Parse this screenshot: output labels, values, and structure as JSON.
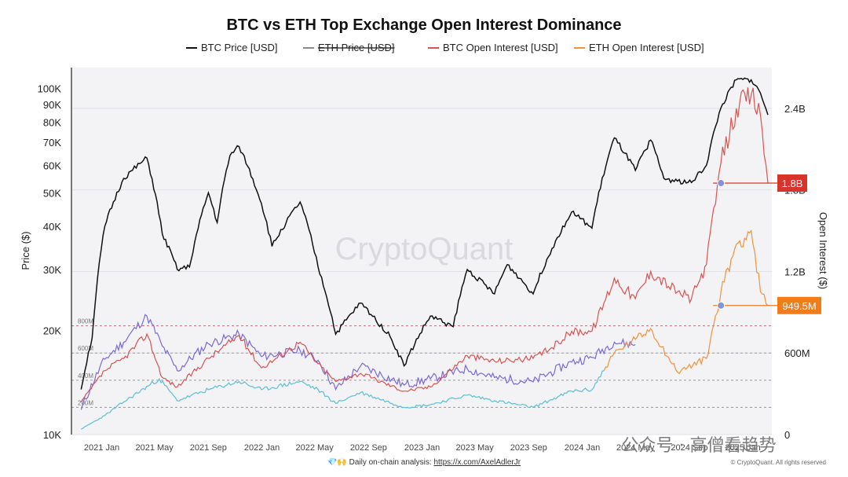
{
  "chart_data": {
    "type": "line",
    "title": "BTC vs ETH Top Exchange Open Interest Dominance",
    "ylabel": "Price ($)",
    "y2label": "Open Interest ($)",
    "legend": [
      {
        "key": "btc_price",
        "label": "BTC Price [USD]",
        "color": "#111111",
        "hidden": false
      },
      {
        "key": "eth_price",
        "label": "ETH Price [USD]",
        "color": "#8a8a8a",
        "hidden": true
      },
      {
        "key": "btc_oi",
        "label": "BTC Open Interest [USD]",
        "color": "#d9534f",
        "hidden": false
      },
      {
        "key": "eth_oi",
        "label": "ETH Open Interest [USD]",
        "color": "#f0923a",
        "hidden": false
      }
    ],
    "x_ticks": [
      "2021 Jan",
      "2021 May",
      "2021 Sep",
      "2022 Jan",
      "2022 May",
      "2022 Sep",
      "2023 Jan",
      "2023 May",
      "2023 Sep",
      "2024 Jan",
      "2024 May",
      "2024 Sep",
      "2025 Jan"
    ],
    "y_ticks": [
      "10K",
      "20K",
      "30K",
      "40K",
      "50K",
      "60K",
      "70K",
      "80K",
      "90K",
      "100K"
    ],
    "y2_ticks": [
      "0",
      "600M",
      "1.2B",
      "1.8B",
      "2.4B"
    ],
    "y_scale": "log",
    "ylim": [
      10000,
      115000
    ],
    "y2lim": [
      0,
      2700000000
    ],
    "grid": true,
    "legend_position": "top",
    "threshold_lines": [
      {
        "label": "800M",
        "value": 800000000,
        "color": "#e06666"
      },
      {
        "label": "600M",
        "value": 600000000,
        "color": "#999999"
      },
      {
        "label": "400M",
        "value": 400000000,
        "color": "#999999"
      },
      {
        "label": "200M",
        "value": 200000000,
        "color": "#999999"
      }
    ],
    "badges": [
      {
        "label": "1.8B",
        "value": 1850000000,
        "color": "#d9342b"
      },
      {
        "label": "949.5M",
        "value": 949500000,
        "color": "#f07d1a"
      }
    ],
    "series": [
      {
        "key": "btc_price",
        "name": "BTC Price [USD]",
        "axis": "left",
        "color": "#111111",
        "x": [
          "2020-11-15",
          "2020-12-10",
          "2021-01-08",
          "2021-02-20",
          "2021-04-14",
          "2021-05-19",
          "2021-06-22",
          "2021-07-20",
          "2021-09-01",
          "2021-09-21",
          "2021-10-20",
          "2021-11-10",
          "2021-12-31",
          "2022-01-24",
          "2022-03-29",
          "2022-05-09",
          "2022-06-18",
          "2022-08-14",
          "2022-10-20",
          "2022-11-21",
          "2023-01-20",
          "2023-03-13",
          "2023-04-14",
          "2023-06-15",
          "2023-07-14",
          "2023-09-11",
          "2023-10-24",
          "2023-12-08",
          "2024-01-23",
          "2024-03-14",
          "2024-05-01",
          "2024-06-05",
          "2024-07-05",
          "2024-08-05",
          "2024-09-06",
          "2024-10-10",
          "2024-11-12",
          "2024-12-17",
          "2025-01-20",
          "2025-02-10",
          "2025-02-27"
        ],
        "y": [
          13500,
          19000,
          40000,
          55000,
          63000,
          38000,
          30000,
          30500,
          50000,
          41000,
          64000,
          68000,
          46500,
          35000,
          47000,
          30500,
          19500,
          24000,
          19200,
          15800,
          22000,
          20500,
          30000,
          25500,
          31000,
          25500,
          34500,
          44000,
          39500,
          72000,
          58000,
          71000,
          55000,
          54000,
          53500,
          60000,
          88000,
          106000,
          106000,
          97000,
          84000
        ]
      },
      {
        "key": "btc_oi",
        "name": "BTC Open Interest [USD]",
        "axis": "right",
        "color": "#d9534f",
        "x": [
          "2020-11-15",
          "2021-01-08",
          "2021-02-20",
          "2021-04-14",
          "2021-05-19",
          "2021-06-22",
          "2021-09-01",
          "2021-11-10",
          "2021-12-31",
          "2022-03-29",
          "2022-05-09",
          "2022-06-18",
          "2022-08-14",
          "2022-11-21",
          "2023-01-20",
          "2023-04-14",
          "2023-06-15",
          "2023-09-11",
          "2023-10-24",
          "2023-12-08",
          "2024-01-23",
          "2024-03-14",
          "2024-05-01",
          "2024-06-05",
          "2024-08-05",
          "2024-09-06",
          "2024-10-10",
          "2024-11-12",
          "2024-12-17",
          "2025-01-20",
          "2025-02-10",
          "2025-02-27"
        ],
        "y": [
          240000000,
          470000000,
          560000000,
          740000000,
          420000000,
          350000000,
          560000000,
          730000000,
          490000000,
          680000000,
          520000000,
          390000000,
          450000000,
          320000000,
          350000000,
          580000000,
          540000000,
          560000000,
          640000000,
          760000000,
          760000000,
          1150000000,
          1000000000,
          1200000000,
          1050000000,
          1000000000,
          1250000000,
          2000000000,
          2400000000,
          2500000000,
          2350000000,
          1850000000
        ]
      },
      {
        "key": "eth_oi",
        "name": "ETH Open Interest [USD]",
        "axis": "right",
        "color": "#5bbfd6",
        "highlight_color": "#f0923a",
        "x": [
          "2020-11-15",
          "2021-01-08",
          "2021-02-20",
          "2021-05-12",
          "2021-06-22",
          "2021-09-01",
          "2021-11-10",
          "2021-12-31",
          "2022-03-29",
          "2022-05-09",
          "2022-06-18",
          "2022-08-14",
          "2022-11-21",
          "2023-01-20",
          "2023-04-14",
          "2023-06-15",
          "2023-09-11",
          "2023-12-08",
          "2024-01-23",
          "2024-03-14",
          "2024-05-01",
          "2024-06-05",
          "2024-08-05",
          "2024-10-10",
          "2024-11-12",
          "2024-12-17",
          "2025-01-20",
          "2025-02-10",
          "2025-02-27"
        ],
        "y": [
          40000000,
          140000000,
          240000000,
          410000000,
          250000000,
          330000000,
          390000000,
          330000000,
          390000000,
          330000000,
          230000000,
          310000000,
          200000000,
          220000000,
          290000000,
          250000000,
          200000000,
          320000000,
          330000000,
          600000000,
          700000000,
          780000000,
          460000000,
          560000000,
          1050000000,
          1400000000,
          1500000000,
          1050000000,
          949500000
        ]
      },
      {
        "key": "eth_price",
        "name": "ETH Price [USD]",
        "axis": "left",
        "color": "#7b68d9",
        "x": [
          "2020-11-15",
          "2021-01-08",
          "2021-02-20",
          "2021-04-14",
          "2021-05-19",
          "2021-06-22",
          "2021-09-01",
          "2021-11-10",
          "2021-12-31",
          "2022-03-29",
          "2022-05-09",
          "2022-06-18",
          "2022-08-14",
          "2022-11-21",
          "2023-01-20",
          "2023-04-14",
          "2023-06-15",
          "2023-09-11",
          "2023-12-08",
          "2024-01-23",
          "2024-03-14",
          "2024-05-01"
        ],
        "y": [
          11800,
          16500,
          18500,
          22000,
          18000,
          15300,
          18300,
          19500,
          16800,
          17500,
          16400,
          13500,
          15800,
          13900,
          14500,
          15500,
          14600,
          14200,
          16200,
          16700,
          18500,
          18200
        ]
      }
    ],
    "watermark": "CryptoQuant",
    "footer": {
      "prefix": "💎🙌 Daily on-chain analysis: ",
      "link": "https://x.com/AxelAdlerJr"
    },
    "copyright": "© CryptoQuant. All rights reserved",
    "wechat_watermark": "公众号 · 高僧看趋势"
  }
}
